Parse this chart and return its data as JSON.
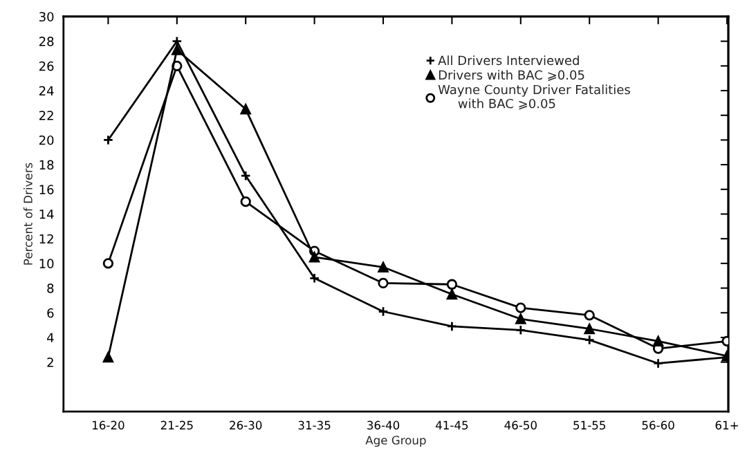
{
  "chart_data": {
    "type": "line",
    "xlabel": "Age Group",
    "ylabel": "Percent of Drivers",
    "categories": [
      "16-20",
      "21-25",
      "26-30",
      "31-35",
      "36-40",
      "41-45",
      "46-50",
      "51-55",
      "56-60",
      "61+"
    ],
    "ylim": [
      -2,
      30
    ],
    "yticks": [
      2,
      4,
      6,
      8,
      10,
      12,
      14,
      16,
      18,
      20,
      22,
      24,
      26,
      28,
      30
    ],
    "grid": false,
    "legend": "top right",
    "line_style": "solid",
    "series": [
      {
        "name": "All Drivers Interviewed",
        "color": "#000000",
        "marker": "cross",
        "values": [
          20,
          28,
          17.1,
          8.8,
          6.1,
          4.9,
          4.6,
          3.8,
          1.9,
          2.4
        ]
      },
      {
        "name": "Drivers with BAC ⩾0.05",
        "color": "#000000",
        "marker": "triangle",
        "values": [
          2.4,
          27.3,
          22.5,
          10.5,
          9.7,
          7.5,
          5.5,
          4.7,
          3.7,
          2.5
        ]
      },
      {
        "name": "Wayne County Driver Fatalities\n     with BAC ⩾0.05",
        "color": "#000000",
        "marker": "circle",
        "values": [
          10,
          26,
          15,
          11,
          8.4,
          8.3,
          6.4,
          5.8,
          3.1,
          3.7
        ]
      }
    ]
  }
}
